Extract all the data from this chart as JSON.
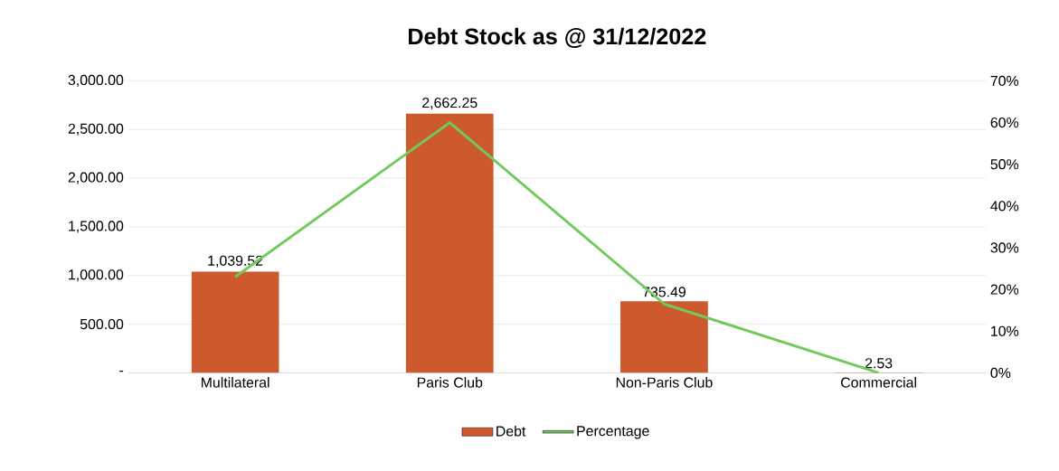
{
  "chart_data": {
    "type": "bar",
    "title": "Debt Stock as @ 31/12/2022",
    "categories": [
      "Multilateral",
      "Paris Club",
      "Non-Paris Club",
      "Commercial"
    ],
    "series": [
      {
        "name": "Debt",
        "color": "#cc5a2c",
        "values": [
          1039.52,
          2662.25,
          735.49,
          2.53
        ],
        "value_labels": [
          "1,039.52",
          "2,662.25",
          "735.49",
          "2.53"
        ]
      },
      {
        "name": "Percentage",
        "type": "line",
        "axis": "y2",
        "color": "#72c95e",
        "values": [
          23,
          60,
          16.5,
          0
        ]
      }
    ],
    "ylim": [
      0,
      3000
    ],
    "yticks": [
      {
        "value": 0,
        "label": "-"
      },
      {
        "value": 500,
        "label": "500.00"
      },
      {
        "value": 1000,
        "label": "1,000.00"
      },
      {
        "value": 1500,
        "label": "1,500.00"
      },
      {
        "value": 2000,
        "label": "2,000.00"
      },
      {
        "value": 2500,
        "label": "2,500.00"
      },
      {
        "value": 3000,
        "label": "3,000.00"
      }
    ],
    "y2lim": [
      0,
      70
    ],
    "y2ticks": [
      {
        "value": 0,
        "label": "0%"
      },
      {
        "value": 10,
        "label": "10%"
      },
      {
        "value": 20,
        "label": "20%"
      },
      {
        "value": 30,
        "label": "30%"
      },
      {
        "value": 40,
        "label": "40%"
      },
      {
        "value": 50,
        "label": "50%"
      },
      {
        "value": 60,
        "label": "60%"
      },
      {
        "value": 70,
        "label": "70%"
      }
    ],
    "grid": "y",
    "legend": "bottom",
    "marker": "none"
  }
}
